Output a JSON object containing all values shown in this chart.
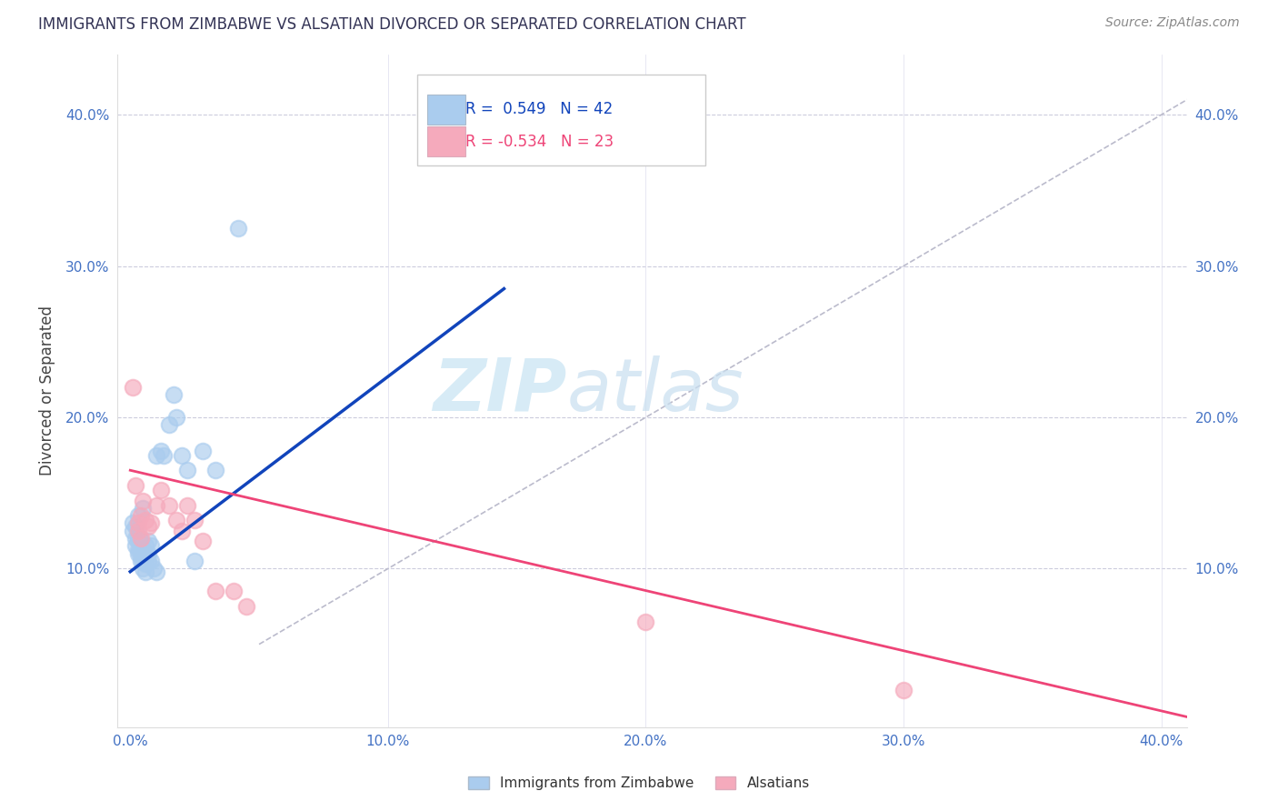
{
  "title": "IMMIGRANTS FROM ZIMBABWE VS ALSATIAN DIVORCED OR SEPARATED CORRELATION CHART",
  "source": "Source: ZipAtlas.com",
  "tick_color": "#4472C4",
  "ylabel": "Divorced or Separated",
  "xlim": [
    -0.005,
    0.41
  ],
  "ylim": [
    -0.005,
    0.44
  ],
  "xtick_vals": [
    0.0,
    0.1,
    0.2,
    0.3,
    0.4
  ],
  "ytick_vals": [
    0.1,
    0.2,
    0.3,
    0.4
  ],
  "blue_R": 0.549,
  "blue_N": 42,
  "pink_R": -0.534,
  "pink_N": 23,
  "blue_dot_color": "#AACCEE",
  "pink_dot_color": "#F5AABC",
  "blue_line_color": "#1144BB",
  "pink_line_color": "#EE4477",
  "diagonal_line_color": "#BBBBCC",
  "watermark_color": "#D0E8F5",
  "legend_label_blue": "Immigrants from Zimbabwe",
  "legend_label_pink": "Alsatians",
  "blue_scatter_x": [
    0.001,
    0.001,
    0.002,
    0.002,
    0.002,
    0.003,
    0.003,
    0.003,
    0.003,
    0.003,
    0.004,
    0.004,
    0.004,
    0.004,
    0.004,
    0.005,
    0.005,
    0.005,
    0.005,
    0.005,
    0.006,
    0.006,
    0.006,
    0.007,
    0.007,
    0.007,
    0.008,
    0.008,
    0.009,
    0.01,
    0.01,
    0.012,
    0.013,
    0.015,
    0.017,
    0.018,
    0.02,
    0.022,
    0.025,
    0.028,
    0.033,
    0.042
  ],
  "blue_scatter_y": [
    0.13,
    0.125,
    0.115,
    0.12,
    0.128,
    0.11,
    0.112,
    0.118,
    0.122,
    0.135,
    0.105,
    0.108,
    0.112,
    0.115,
    0.118,
    0.1,
    0.105,
    0.108,
    0.112,
    0.14,
    0.098,
    0.103,
    0.115,
    0.105,
    0.11,
    0.118,
    0.105,
    0.115,
    0.1,
    0.098,
    0.175,
    0.178,
    0.175,
    0.195,
    0.215,
    0.2,
    0.175,
    0.165,
    0.105,
    0.178,
    0.165,
    0.325
  ],
  "pink_scatter_x": [
    0.001,
    0.002,
    0.003,
    0.003,
    0.004,
    0.004,
    0.005,
    0.006,
    0.007,
    0.008,
    0.01,
    0.012,
    0.015,
    0.018,
    0.02,
    0.022,
    0.025,
    0.028,
    0.033,
    0.04,
    0.045,
    0.2,
    0.3
  ],
  "pink_scatter_y": [
    0.22,
    0.155,
    0.13,
    0.125,
    0.135,
    0.12,
    0.145,
    0.132,
    0.128,
    0.13,
    0.142,
    0.152,
    0.142,
    0.132,
    0.125,
    0.142,
    0.132,
    0.118,
    0.085,
    0.085,
    0.075,
    0.065,
    0.02
  ],
  "blue_line_x": [
    0.0,
    0.145
  ],
  "blue_line_y": [
    0.098,
    0.285
  ],
  "pink_line_x": [
    0.0,
    0.415
  ],
  "pink_line_y": [
    0.165,
    0.0
  ],
  "diagonal_line_x": [
    0.05,
    0.41
  ],
  "diagonal_line_y": [
    0.05,
    0.41
  ]
}
